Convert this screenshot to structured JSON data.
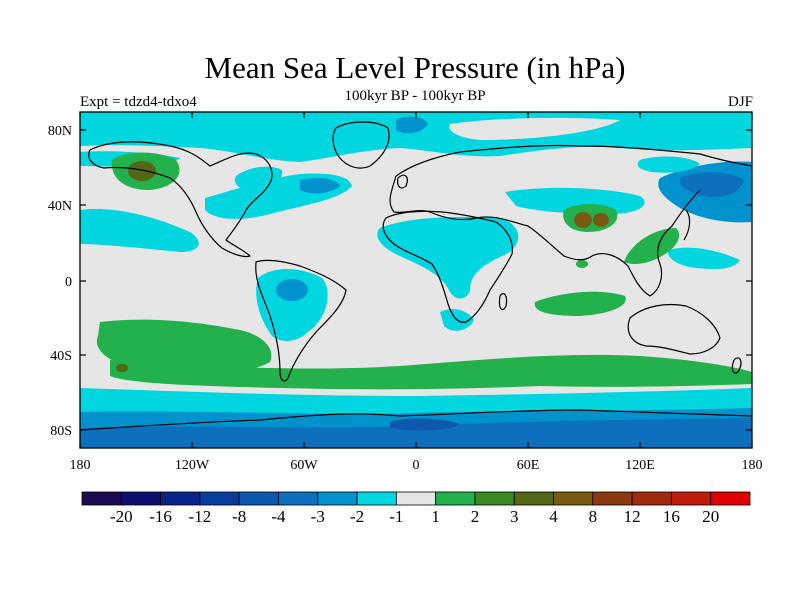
{
  "title": "Mean Sea Level Pressure (in hPa)",
  "subtitle": "100kyr BP - 100kyr BP",
  "left_label": "Expt = tdzd4-tdxo4",
  "right_label": "DJF",
  "lat_ticks": [
    "80N",
    "40N",
    "0",
    "40S",
    "80S"
  ],
  "lon_ticks": [
    "180",
    "120W",
    "60W",
    "0",
    "60E",
    "120E",
    "180"
  ],
  "colorbar": {
    "colors": [
      "#1c0a55",
      "#0c0f6e",
      "#0a238a",
      "#0a3c9c",
      "#0c58ae",
      "#0c70be",
      "#0092cc",
      "#00d6df",
      "#e6e6e6",
      "#22b14c",
      "#3a8a24",
      "#546714",
      "#7a5a10",
      "#8a3a10",
      "#a02a10",
      "#c01a0a",
      "#e00000"
    ],
    "labels": [
      "-20",
      "-16",
      "-12",
      "-8",
      "-4",
      "-3",
      "-2",
      "-1",
      "1",
      "2",
      "3",
      "4",
      "8",
      "12",
      "16",
      "20"
    ]
  },
  "palette": {
    "neutral": "#e6e6e6",
    "cyan": "#00d6df",
    "mid_blue": "#0092cc",
    "blue": "#0c70be",
    "deep_blue": "#0c58ae",
    "green": "#22b14c",
    "olive": "#546714",
    "brown": "#7a5a10"
  }
}
